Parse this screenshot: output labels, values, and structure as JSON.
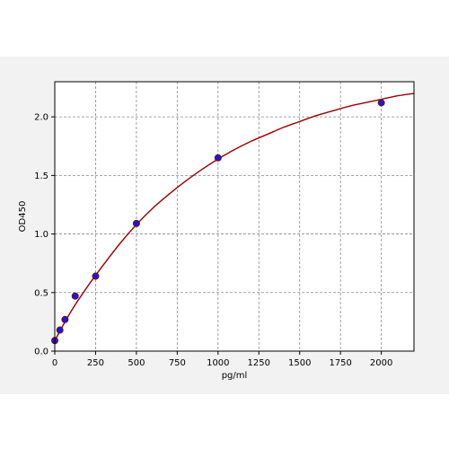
{
  "chart_data": {
    "type": "scatter",
    "title": "",
    "xlabel": "pg/ml",
    "ylabel": "OD450",
    "xlim": [
      0,
      2200
    ],
    "ylim": [
      0,
      2.3
    ],
    "grid": true,
    "x_ticks": [
      0,
      250,
      500,
      750,
      1000,
      1250,
      1500,
      1750,
      2000
    ],
    "x_tick_labels": [
      "0",
      "250",
      "500",
      "750",
      "1000",
      "1250",
      "1500",
      "1750",
      "2000"
    ],
    "y_ticks": [
      0,
      0.5,
      1.0,
      1.5,
      2.0
    ],
    "y_tick_labels": [
      "0.0",
      "0.5",
      "1.0",
      "1.5",
      "2.0"
    ],
    "series": [
      {
        "kind": "points",
        "color": "#1a1acc",
        "x": [
          0,
          31.25,
          62.5,
          125,
          250,
          500,
          1000,
          2000
        ],
        "y": [
          0.09,
          0.18,
          0.27,
          0.47,
          0.64,
          1.09,
          1.65,
          2.12
        ]
      },
      {
        "kind": "fit-curve",
        "color": "#9b0000",
        "x": [
          0,
          100,
          200,
          300,
          400,
          500,
          600,
          700,
          800,
          900,
          1000,
          1100,
          1200,
          1300,
          1400,
          1500,
          1600,
          1700,
          1800,
          1900,
          2000,
          2100,
          2200
        ],
        "y": [
          0.09,
          0.34,
          0.55,
          0.74,
          0.92,
          1.08,
          1.22,
          1.34,
          1.45,
          1.55,
          1.64,
          1.72,
          1.79,
          1.85,
          1.91,
          1.96,
          2.01,
          2.05,
          2.09,
          2.12,
          2.15,
          2.18,
          2.2
        ]
      }
    ]
  },
  "colors": {
    "panel_bg": "#f2f2f2",
    "plot_bg": "#ffffff",
    "grid": "#8a8a8a",
    "point": "#1a1acc",
    "point_edge": "#8b0000",
    "curve": "#9b0000"
  }
}
